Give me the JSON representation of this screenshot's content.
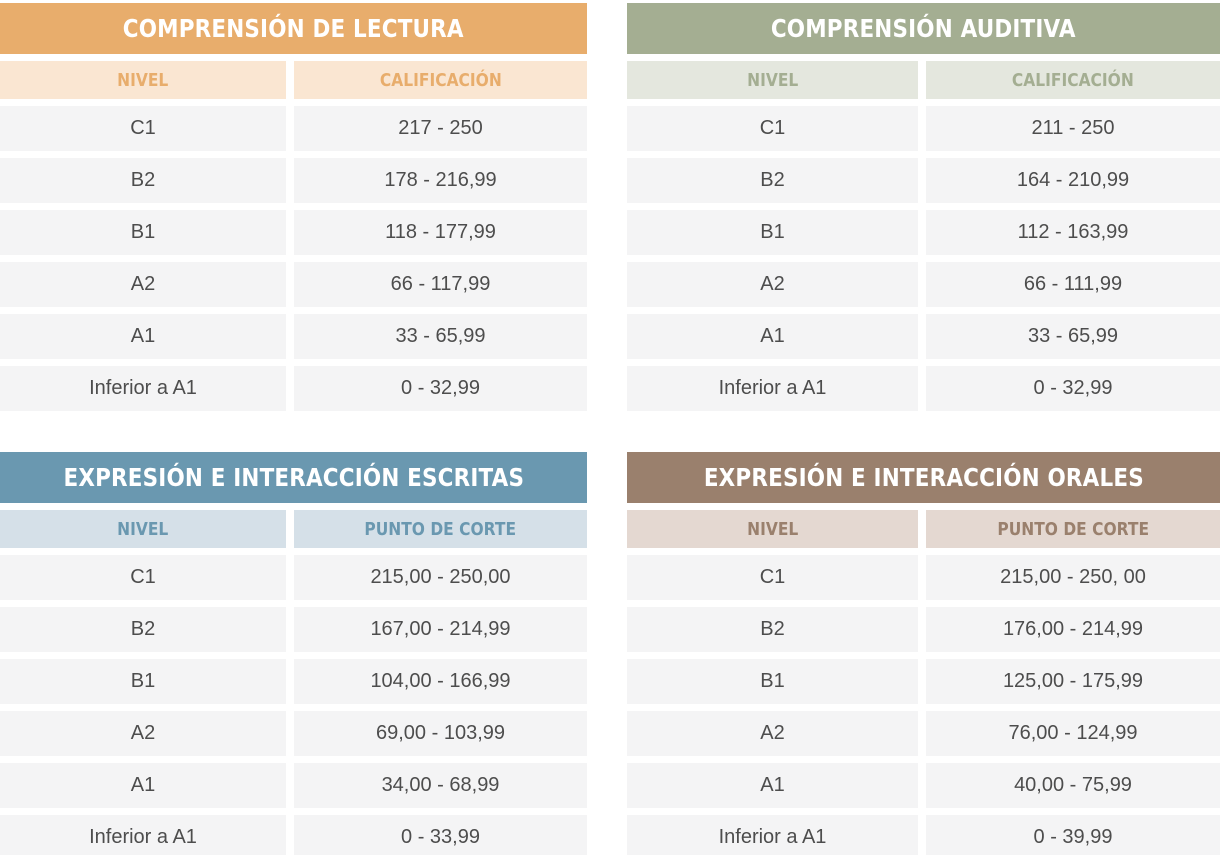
{
  "tables": [
    {
      "title": "COMPRENSIÓN DE LECTURA",
      "headers": [
        "NIVEL",
        "CALIFICACIÓN"
      ],
      "accent_color": "#e8ad6c",
      "rows": [
        [
          "C1",
          "217 - 250"
        ],
        [
          "B2",
          "178 - 216,99"
        ],
        [
          "B1",
          "118 - 177,99"
        ],
        [
          "A2",
          "66 - 117,99"
        ],
        [
          "A1",
          "33 - 65,99"
        ],
        [
          "Inferior a A1",
          "0 - 32,99"
        ]
      ]
    },
    {
      "title": "COMPRENSIÓN AUDITIVA",
      "headers": [
        "NIVEL",
        "CALIFICACIÓN"
      ],
      "accent_color": "#a4ae92",
      "rows": [
        [
          "C1",
          "211 - 250"
        ],
        [
          "B2",
          "164 - 210,99"
        ],
        [
          "B1",
          "112 - 163,99"
        ],
        [
          "A2",
          "66 - 111,99"
        ],
        [
          "A1",
          "33 - 65,99"
        ],
        [
          "Inferior a A1",
          "0 - 32,99"
        ]
      ]
    },
    {
      "title": "EXPRESIÓN E INTERACCIÓN ESCRITAS",
      "headers": [
        "NIVEL",
        "PUNTO DE CORTE"
      ],
      "accent_color": "#6a98b0",
      "rows": [
        [
          "C1",
          "215,00 - 250,00"
        ],
        [
          "B2",
          "167,00 - 214,99"
        ],
        [
          "B1",
          "104,00 - 166,99"
        ],
        [
          "A2",
          "69,00 - 103,99"
        ],
        [
          "A1",
          "34,00 - 68,99"
        ],
        [
          "Inferior a A1",
          "0 - 33,99"
        ]
      ]
    },
    {
      "title": "EXPRESIÓN E INTERACCIÓN ORALES",
      "headers": [
        "NIVEL",
        "PUNTO DE CORTE"
      ],
      "accent_color": "#9a806d",
      "rows": [
        [
          "C1",
          "215,00 - 250, 00"
        ],
        [
          "B2",
          "176,00 - 214,99"
        ],
        [
          "B1",
          "125,00 - 175,99"
        ],
        [
          "A2",
          "76,00 - 124,99"
        ],
        [
          "A1",
          "40,00 - 75,99"
        ],
        [
          "Inferior a A1",
          "0 - 39,99"
        ]
      ]
    }
  ]
}
